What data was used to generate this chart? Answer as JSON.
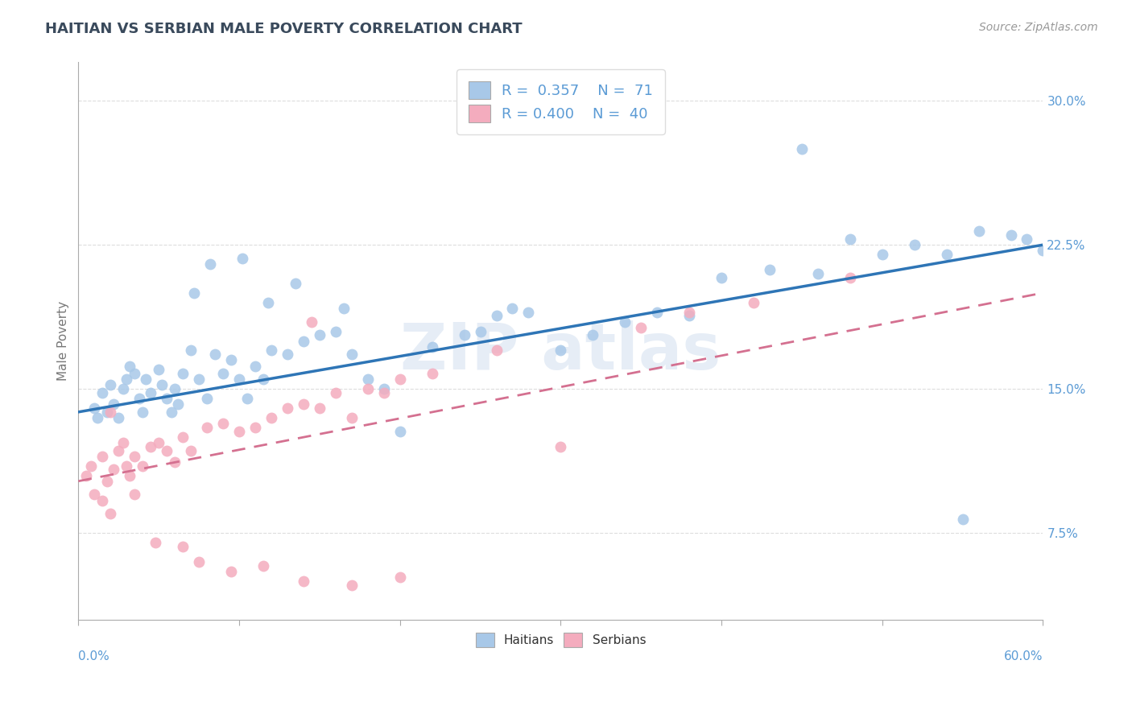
{
  "title": "HAITIAN VS SERBIAN MALE POVERTY CORRELATION CHART",
  "source": "Source: ZipAtlas.com",
  "ylabel": "Male Poverty",
  "xmin": 0.0,
  "xmax": 60.0,
  "ymin": 3.0,
  "ymax": 32.0,
  "yticks": [
    7.5,
    15.0,
    22.5,
    30.0
  ],
  "blue_color": "#A8C8E8",
  "pink_color": "#F4ACBE",
  "blue_line_color": "#2E75B6",
  "pink_line_color": "#D47090",
  "legend_label1": "Haitians",
  "legend_label2": "Serbians",
  "title_color": "#3A4A5C",
  "axis_label_color": "#5B9BD5",
  "haitians_x": [
    1.0,
    1.2,
    1.5,
    1.8,
    2.0,
    2.2,
    2.5,
    2.8,
    3.0,
    3.2,
    3.5,
    3.8,
    4.0,
    4.2,
    4.5,
    5.0,
    5.2,
    5.5,
    5.8,
    6.0,
    6.2,
    6.5,
    7.0,
    7.5,
    8.0,
    8.5,
    9.0,
    9.5,
    10.0,
    10.5,
    11.0,
    11.5,
    12.0,
    13.0,
    14.0,
    15.0,
    16.0,
    17.0,
    18.0,
    19.0,
    20.0,
    22.0,
    24.0,
    25.0,
    26.0,
    27.0,
    28.0,
    30.0,
    32.0,
    34.0,
    36.0,
    38.0,
    40.0,
    43.0,
    45.0,
    46.0,
    48.0,
    50.0,
    52.0,
    54.0,
    56.0,
    58.0,
    59.0,
    60.0,
    55.0,
    7.2,
    8.2,
    10.2,
    11.8,
    13.5,
    16.5
  ],
  "haitians_y": [
    14.0,
    13.5,
    14.8,
    13.8,
    15.2,
    14.2,
    13.5,
    15.0,
    15.5,
    16.2,
    15.8,
    14.5,
    13.8,
    15.5,
    14.8,
    16.0,
    15.2,
    14.5,
    13.8,
    15.0,
    14.2,
    15.8,
    17.0,
    15.5,
    14.5,
    16.8,
    15.8,
    16.5,
    15.5,
    14.5,
    16.2,
    15.5,
    17.0,
    16.8,
    17.5,
    17.8,
    18.0,
    16.8,
    15.5,
    15.0,
    12.8,
    17.2,
    17.8,
    18.0,
    18.8,
    19.2,
    19.0,
    17.0,
    17.8,
    18.5,
    19.0,
    18.8,
    20.8,
    21.2,
    27.5,
    21.0,
    22.8,
    22.0,
    22.5,
    22.0,
    23.2,
    23.0,
    22.8,
    22.2,
    8.2,
    20.0,
    21.5,
    21.8,
    19.5,
    20.5,
    19.2
  ],
  "serbians_x": [
    0.5,
    0.8,
    1.0,
    1.5,
    1.8,
    2.0,
    2.2,
    2.5,
    2.8,
    3.0,
    3.2,
    3.5,
    4.0,
    4.5,
    5.0,
    5.5,
    6.0,
    6.5,
    7.0,
    8.0,
    9.0,
    10.0,
    11.0,
    12.0,
    13.0,
    14.0,
    15.0,
    16.0,
    17.0,
    18.0,
    19.0,
    20.0,
    22.0,
    26.0,
    35.0,
    38.0,
    42.0,
    48.0,
    14.5,
    30.0
  ],
  "serbians_y": [
    10.5,
    11.0,
    9.5,
    11.5,
    10.2,
    13.8,
    10.8,
    11.8,
    12.2,
    11.0,
    10.5,
    11.5,
    11.0,
    12.0,
    12.2,
    11.8,
    11.2,
    12.5,
    11.8,
    13.0,
    13.2,
    12.8,
    13.0,
    13.5,
    14.0,
    14.2,
    14.0,
    14.8,
    13.5,
    15.0,
    14.8,
    15.5,
    15.8,
    17.0,
    18.2,
    19.0,
    19.5,
    20.8,
    18.5,
    12.0
  ],
  "serbians_extra_x": [
    1.5,
    2.0,
    3.5,
    4.8,
    6.5,
    7.5,
    9.5,
    11.5,
    14.0,
    17.0,
    20.0
  ],
  "serbians_extra_y": [
    9.2,
    8.5,
    9.5,
    7.0,
    6.8,
    6.0,
    5.5,
    5.8,
    5.0,
    4.8,
    5.2
  ],
  "blue_trend_x0": 0.0,
  "blue_trend_y0": 13.8,
  "blue_trend_x1": 60.0,
  "blue_trend_y1": 22.5,
  "pink_trend_x0": 0.0,
  "pink_trend_y0": 10.2,
  "pink_trend_x1": 60.0,
  "pink_trend_y1": 20.0
}
